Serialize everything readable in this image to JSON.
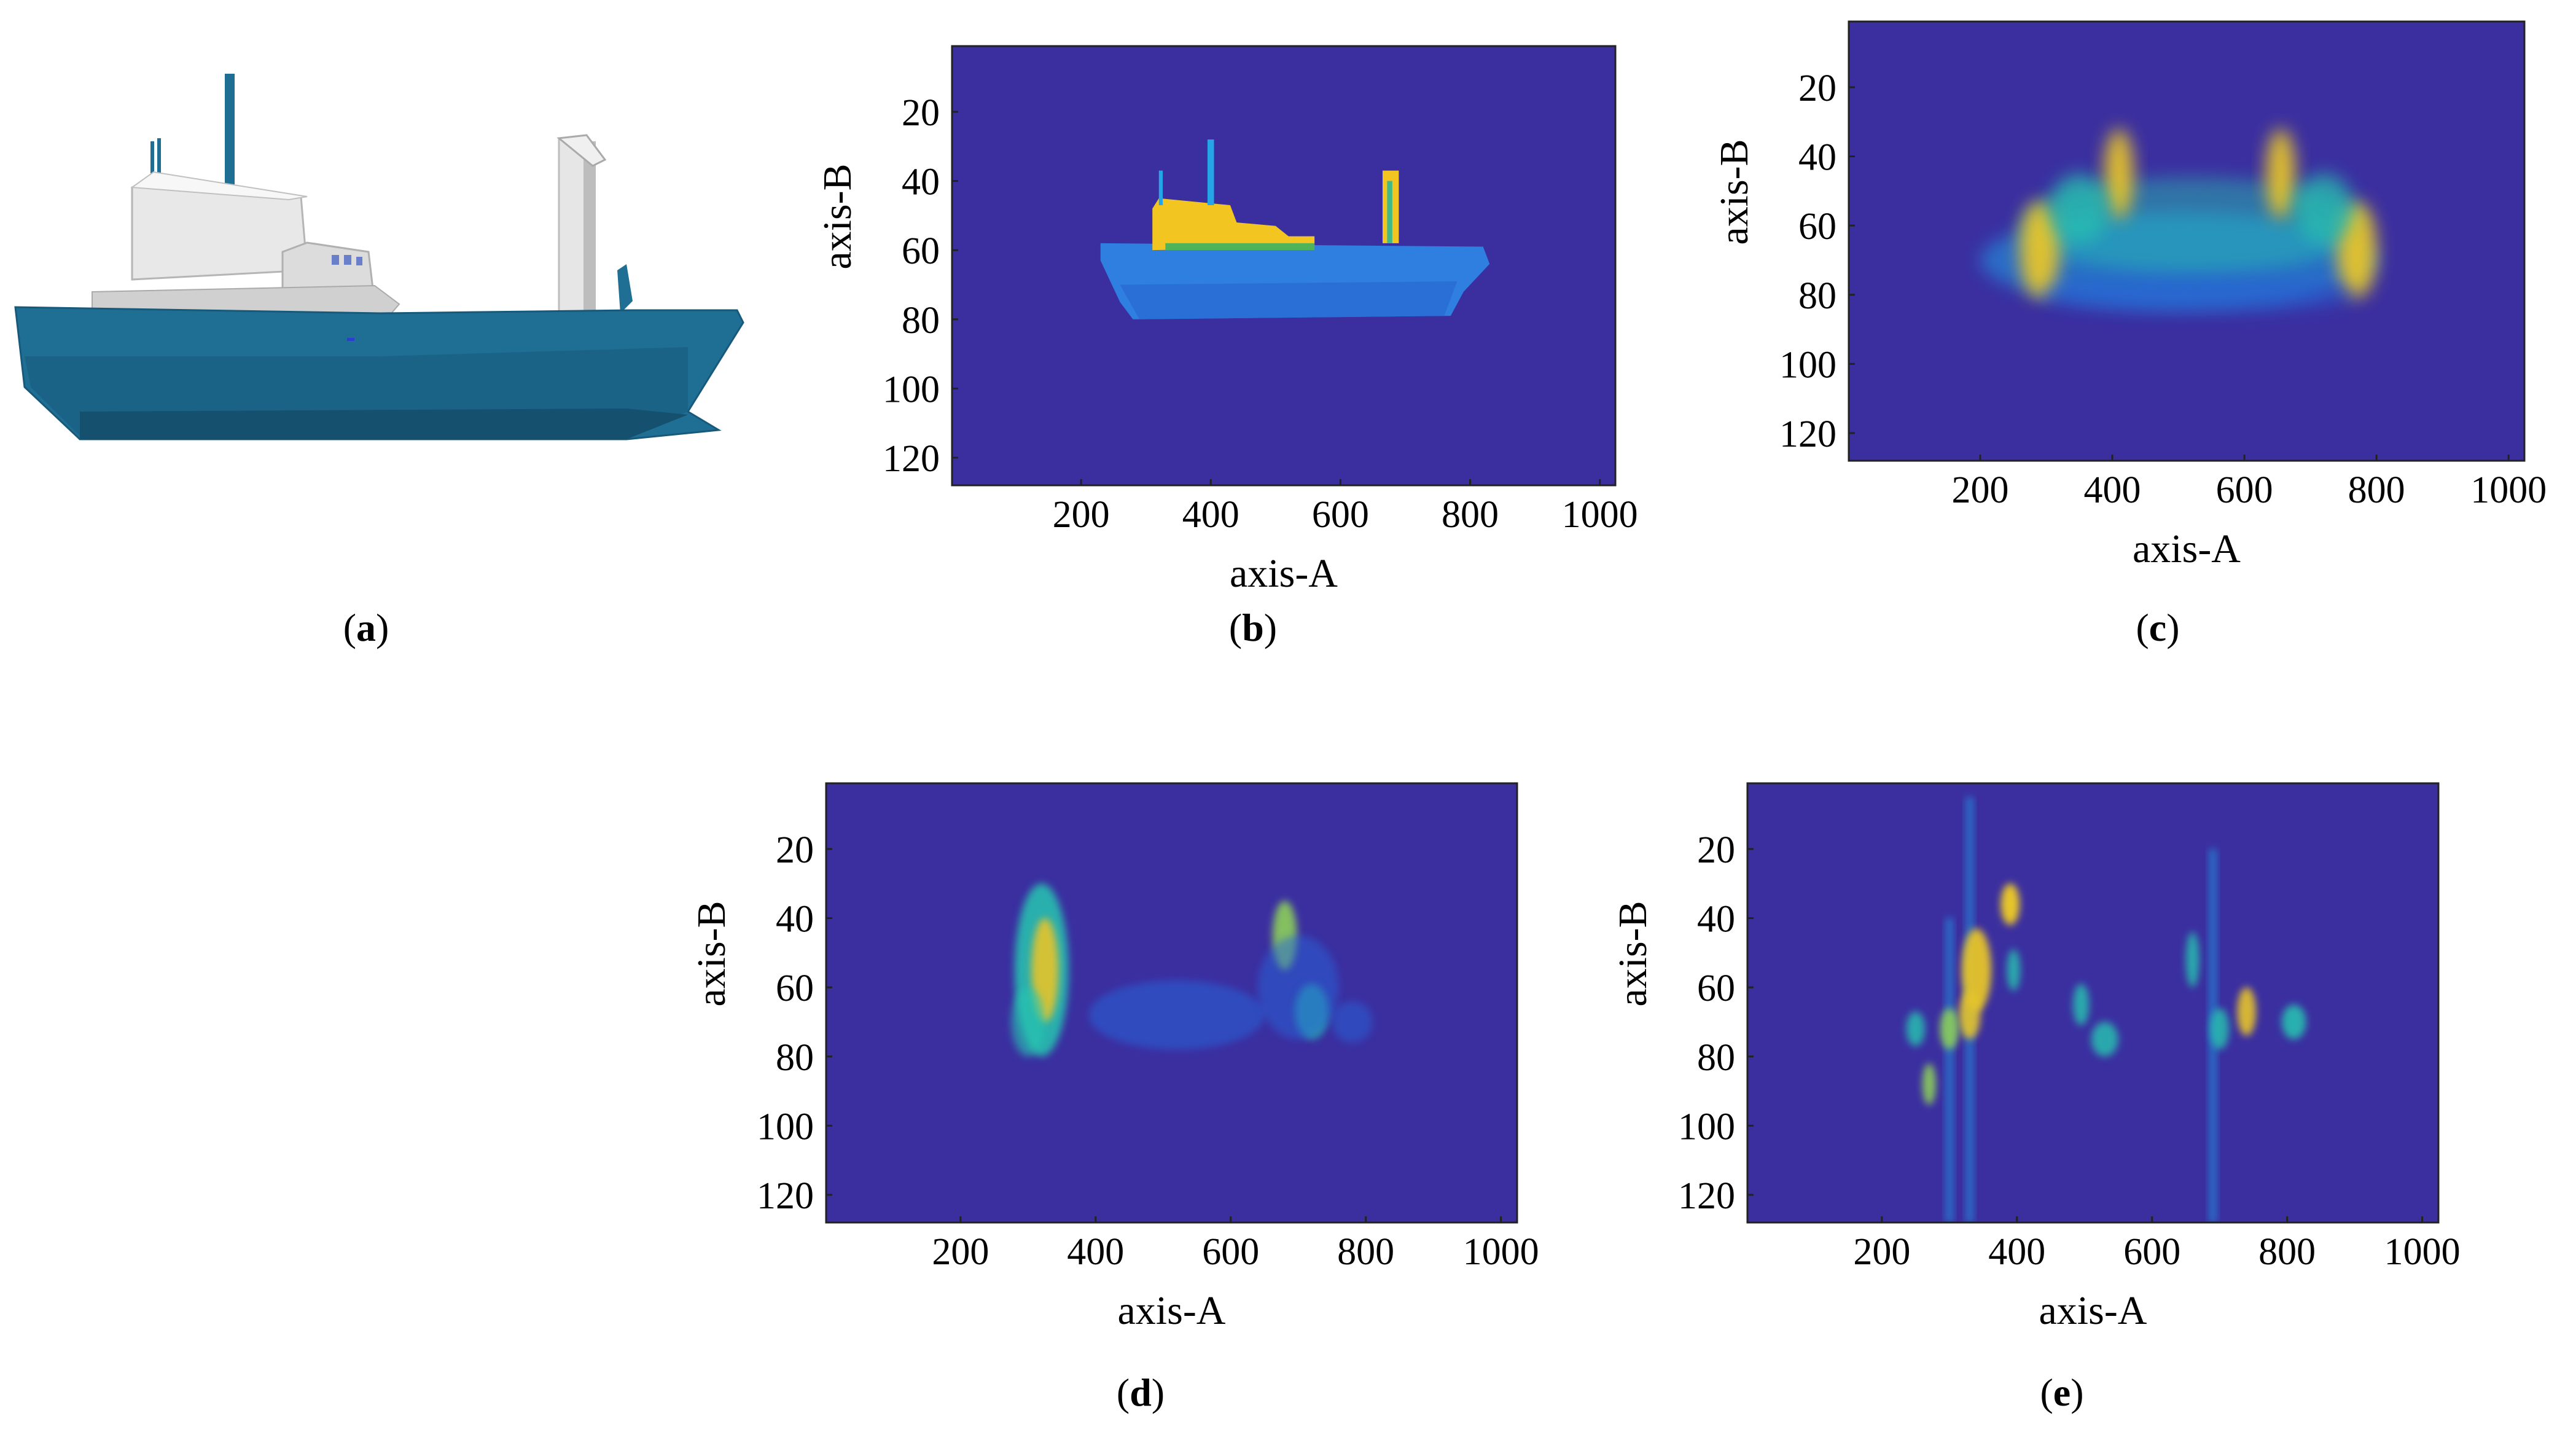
{
  "figure": {
    "panels": [
      {
        "id": "a",
        "letter": "a",
        "kind": "ship-model"
      },
      {
        "id": "b",
        "letter": "b",
        "kind": "image"
      },
      {
        "id": "c",
        "letter": "c",
        "kind": "image"
      },
      {
        "id": "d",
        "letter": "d",
        "kind": "image"
      },
      {
        "id": "e",
        "letter": "e",
        "kind": "image"
      }
    ]
  },
  "colors": {
    "background": "#3b2fa0",
    "hull": "#1f6f94",
    "hull_dark": "#15506e",
    "superstructure": "#d9d9d9",
    "colormap": [
      "#3b2fa0",
      "#2563d8",
      "#1aa0e6",
      "#25c6b0",
      "#8ccf5a",
      "#e6c42a",
      "#fdd825"
    ]
  },
  "chart_data": [
    {
      "id": "b",
      "type": "heatmap",
      "xlabel": "axis-A",
      "ylabel": "axis-B",
      "xlim": [
        1,
        1024
      ],
      "ylim": [
        1,
        128
      ],
      "xticks": [
        200,
        400,
        600,
        800,
        1000
      ],
      "yticks": [
        20,
        40,
        60,
        80,
        100,
        120
      ],
      "y_reversed": true
    },
    {
      "id": "c",
      "type": "heatmap",
      "xlabel": "axis-A",
      "ylabel": "axis-B",
      "xlim": [
        1,
        1024
      ],
      "ylim": [
        1,
        128
      ],
      "xticks": [
        200,
        400,
        600,
        800,
        1000
      ],
      "yticks": [
        20,
        40,
        60,
        80,
        100,
        120
      ],
      "y_reversed": true
    },
    {
      "id": "d",
      "type": "heatmap",
      "xlabel": "axis-A",
      "ylabel": "axis-B",
      "xlim": [
        1,
        1024
      ],
      "ylim": [
        1,
        128
      ],
      "xticks": [
        200,
        400,
        600,
        800,
        1000
      ],
      "yticks": [
        20,
        40,
        60,
        80,
        100,
        120
      ],
      "y_reversed": true
    },
    {
      "id": "e",
      "type": "heatmap",
      "xlabel": "axis-A",
      "ylabel": "axis-B",
      "xlim": [
        1,
        1024
      ],
      "ylim": [
        1,
        128
      ],
      "xticks": [
        200,
        400,
        600,
        800,
        1000
      ],
      "yticks": [
        20,
        40,
        60,
        80,
        100,
        120
      ],
      "y_reversed": true
    }
  ]
}
